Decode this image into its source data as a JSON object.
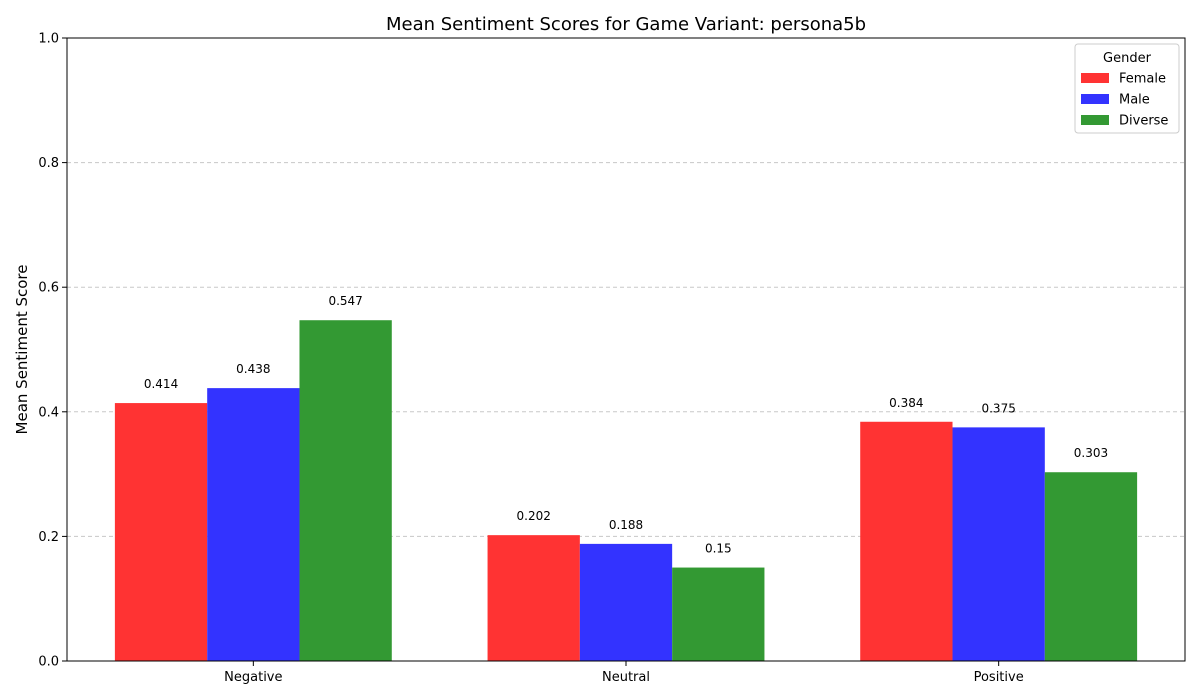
{
  "chart_data": {
    "type": "bar",
    "title": "Mean Sentiment Scores for Game Variant: persona5b",
    "xlabel": "",
    "ylabel": "Mean Sentiment Score",
    "ylim": [
      0,
      1.0
    ],
    "yticks": [
      "0.0",
      "0.2",
      "0.4",
      "0.6",
      "0.8",
      "1.0"
    ],
    "categories": [
      "Negative",
      "Neutral",
      "Positive"
    ],
    "grid": "y-dashed",
    "legend": {
      "title": "Gender",
      "position": "top-right"
    },
    "series": [
      {
        "name": "Female",
        "color": "#ff3333",
        "values": [
          0.414,
          0.202,
          0.384
        ],
        "labels": [
          "0.414",
          "0.202",
          "0.384"
        ]
      },
      {
        "name": "Male",
        "color": "#3333ff",
        "values": [
          0.438,
          0.188,
          0.375
        ],
        "labels": [
          "0.438",
          "0.188",
          "0.375"
        ]
      },
      {
        "name": "Diverse",
        "color": "#339933",
        "values": [
          0.547,
          0.15,
          0.303
        ],
        "labels": [
          "0.547",
          "0.15",
          "0.303"
        ]
      }
    ]
  }
}
